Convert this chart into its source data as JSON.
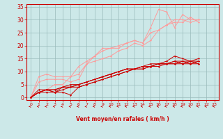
{
  "bg_color": "#cce8e8",
  "grid_color": "#99bbbb",
  "line_color_dark": "#cc0000",
  "line_color_light": "#ff9999",
  "xlabel": "Vent moyen/en rafales ( km/h )",
  "xlabel_color": "#cc0000",
  "tick_color": "#cc0000",
  "arrow_color": "#cc0000",
  "xlim": [
    -0.5,
    23.5
  ],
  "ylim": [
    -1,
    36
  ],
  "xticks": [
    0,
    1,
    2,
    3,
    4,
    5,
    6,
    7,
    8,
    9,
    10,
    11,
    12,
    13,
    14,
    15,
    16,
    17,
    18,
    19,
    20,
    21,
    22,
    23
  ],
  "yticks": [
    0,
    5,
    10,
    15,
    20,
    25,
    30,
    35
  ],
  "series_dark": [
    [
      0,
      2,
      3,
      2,
      3,
      4,
      4,
      5,
      6,
      7,
      8,
      9,
      10,
      11,
      11,
      12,
      13,
      14,
      16,
      15,
      14,
      15
    ],
    [
      0,
      2,
      3,
      2,
      2,
      1,
      4,
      5,
      6,
      7,
      8,
      9,
      10,
      11,
      11,
      12,
      13,
      13,
      14,
      14,
      13,
      13
    ],
    [
      0,
      3,
      3,
      3,
      4,
      4,
      5,
      6,
      7,
      8,
      9,
      10,
      11,
      11,
      12,
      13,
      13,
      13,
      14,
      13,
      14,
      14
    ],
    [
      0,
      2,
      3,
      3,
      4,
      5,
      5,
      6,
      7,
      8,
      9,
      10,
      11,
      11,
      12,
      12,
      13,
      13,
      13,
      14,
      14,
      13
    ],
    [
      0,
      2,
      2,
      2,
      4,
      4,
      5,
      6,
      7,
      8,
      9,
      10,
      11,
      11,
      12,
      12,
      12,
      13,
      13,
      13,
      13,
      14
    ]
  ],
  "series_light": [
    [
      0,
      6,
      7,
      7,
      7,
      6,
      7,
      13,
      16,
      19,
      19,
      19,
      21,
      22,
      21,
      27,
      34,
      33,
      27,
      32,
      30,
      30
    ],
    [
      0,
      2,
      3,
      5,
      5,
      8,
      9,
      13,
      14,
      15,
      16,
      18,
      19,
      21,
      20,
      22,
      26,
      28,
      30,
      30,
      29,
      30
    ],
    [
      0,
      8,
      9,
      8,
      8,
      8,
      12,
      14,
      16,
      18,
      19,
      20,
      21,
      22,
      21,
      25,
      26,
      28,
      29,
      29,
      31,
      29
    ]
  ]
}
